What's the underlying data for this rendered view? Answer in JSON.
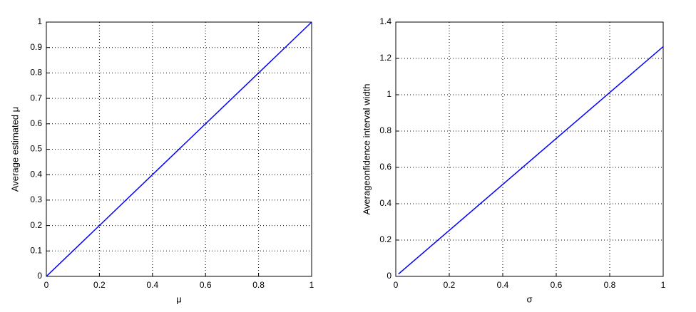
{
  "chart_data": [
    {
      "type": "line",
      "xlabel": "μ",
      "ylabel": "Average estimated μ",
      "x": [
        0,
        1
      ],
      "series": [
        {
          "color": "#0000ff",
          "values": [
            0,
            1
          ]
        }
      ],
      "xlim": [
        0,
        1
      ],
      "ylim": [
        0,
        1
      ],
      "xticks": [
        0,
        0.2,
        0.4,
        0.6,
        0.8,
        1
      ],
      "yticks": [
        0,
        0.1,
        0.2,
        0.3,
        0.4,
        0.5,
        0.6,
        0.7,
        0.8,
        0.9,
        1
      ],
      "grid": true
    },
    {
      "type": "line",
      "xlabel": "σ",
      "ylabel": "Averageonfidence interval width",
      "x": [
        0.01,
        1
      ],
      "series": [
        {
          "color": "#0000ff",
          "values": [
            0.013,
            1.265
          ]
        }
      ],
      "xlim": [
        0,
        1
      ],
      "ylim": [
        0,
        1.4
      ],
      "xticks": [
        0,
        0.2,
        0.4,
        0.6,
        0.8,
        1
      ],
      "yticks": [
        0,
        0.2,
        0.4,
        0.6,
        0.8,
        1,
        1.2,
        1.4
      ],
      "grid": true
    }
  ]
}
